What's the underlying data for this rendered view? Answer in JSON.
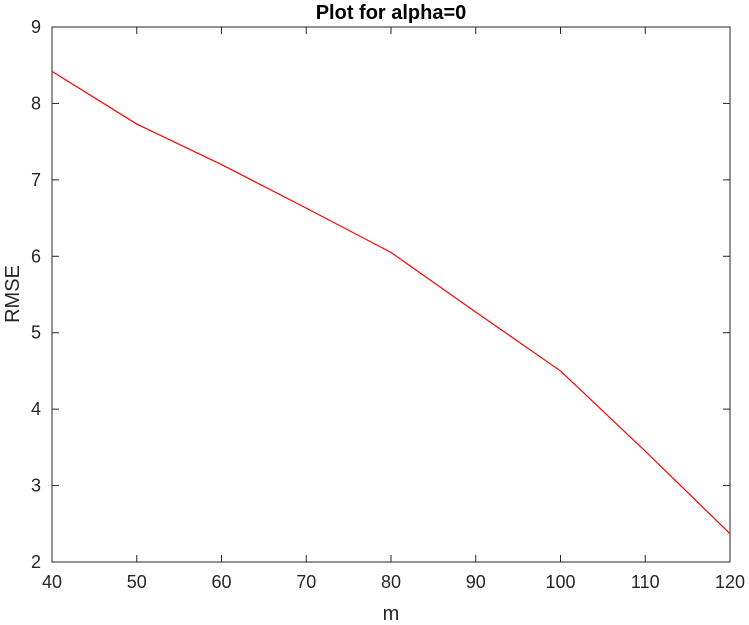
{
  "chart_data": {
    "type": "line",
    "title": "Plot for alpha=0",
    "xlabel": "m",
    "ylabel": "RMSE",
    "xlim": [
      40,
      120
    ],
    "ylim": [
      2,
      9
    ],
    "xticks": [
      40,
      50,
      60,
      70,
      80,
      90,
      100,
      110,
      120
    ],
    "yticks": [
      2,
      3,
      4,
      5,
      6,
      7,
      8,
      9
    ],
    "grid": false,
    "series": [
      {
        "name": "RMSE",
        "color": "#ff0000",
        "x": [
          40,
          50,
          60,
          70,
          80,
          90,
          100,
          110,
          120
        ],
        "y": [
          8.42,
          7.73,
          7.2,
          6.63,
          6.05,
          5.27,
          4.5,
          3.45,
          2.37
        ]
      }
    ]
  }
}
